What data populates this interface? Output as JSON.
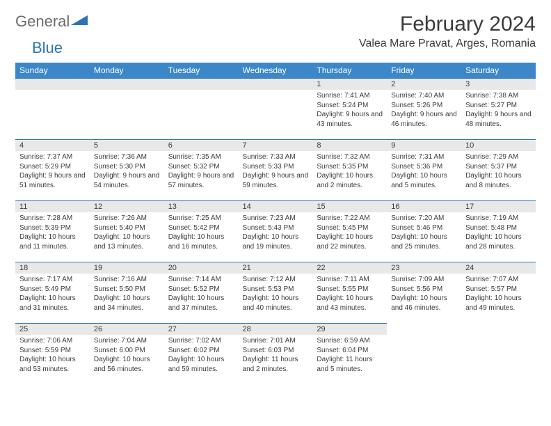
{
  "brand": {
    "name_gray": "General",
    "name_blue": "Blue"
  },
  "title": "February 2024",
  "location": "Valea Mare Pravat, Arges, Romania",
  "colors": {
    "header_bg": "#3b87c8",
    "header_text": "#ffffff",
    "daynum_bg": "#e8e8e8",
    "border": "#2b74b8",
    "text": "#3a3a3a",
    "logo_gray": "#6b6b6b",
    "logo_blue": "#2b74b8"
  },
  "weekdays": [
    "Sunday",
    "Monday",
    "Tuesday",
    "Wednesday",
    "Thursday",
    "Friday",
    "Saturday"
  ],
  "weeks": [
    [
      null,
      null,
      null,
      null,
      {
        "n": "1",
        "sr": "Sunrise: 7:41 AM",
        "ss": "Sunset: 5:24 PM",
        "dl": "Daylight: 9 hours and 43 minutes."
      },
      {
        "n": "2",
        "sr": "Sunrise: 7:40 AM",
        "ss": "Sunset: 5:26 PM",
        "dl": "Daylight: 9 hours and 46 minutes."
      },
      {
        "n": "3",
        "sr": "Sunrise: 7:38 AM",
        "ss": "Sunset: 5:27 PM",
        "dl": "Daylight: 9 hours and 48 minutes."
      }
    ],
    [
      {
        "n": "4",
        "sr": "Sunrise: 7:37 AM",
        "ss": "Sunset: 5:29 PM",
        "dl": "Daylight: 9 hours and 51 minutes."
      },
      {
        "n": "5",
        "sr": "Sunrise: 7:36 AM",
        "ss": "Sunset: 5:30 PM",
        "dl": "Daylight: 9 hours and 54 minutes."
      },
      {
        "n": "6",
        "sr": "Sunrise: 7:35 AM",
        "ss": "Sunset: 5:32 PM",
        "dl": "Daylight: 9 hours and 57 minutes."
      },
      {
        "n": "7",
        "sr": "Sunrise: 7:33 AM",
        "ss": "Sunset: 5:33 PM",
        "dl": "Daylight: 9 hours and 59 minutes."
      },
      {
        "n": "8",
        "sr": "Sunrise: 7:32 AM",
        "ss": "Sunset: 5:35 PM",
        "dl": "Daylight: 10 hours and 2 minutes."
      },
      {
        "n": "9",
        "sr": "Sunrise: 7:31 AM",
        "ss": "Sunset: 5:36 PM",
        "dl": "Daylight: 10 hours and 5 minutes."
      },
      {
        "n": "10",
        "sr": "Sunrise: 7:29 AM",
        "ss": "Sunset: 5:37 PM",
        "dl": "Daylight: 10 hours and 8 minutes."
      }
    ],
    [
      {
        "n": "11",
        "sr": "Sunrise: 7:28 AM",
        "ss": "Sunset: 5:39 PM",
        "dl": "Daylight: 10 hours and 11 minutes."
      },
      {
        "n": "12",
        "sr": "Sunrise: 7:26 AM",
        "ss": "Sunset: 5:40 PM",
        "dl": "Daylight: 10 hours and 13 minutes."
      },
      {
        "n": "13",
        "sr": "Sunrise: 7:25 AM",
        "ss": "Sunset: 5:42 PM",
        "dl": "Daylight: 10 hours and 16 minutes."
      },
      {
        "n": "14",
        "sr": "Sunrise: 7:23 AM",
        "ss": "Sunset: 5:43 PM",
        "dl": "Daylight: 10 hours and 19 minutes."
      },
      {
        "n": "15",
        "sr": "Sunrise: 7:22 AM",
        "ss": "Sunset: 5:45 PM",
        "dl": "Daylight: 10 hours and 22 minutes."
      },
      {
        "n": "16",
        "sr": "Sunrise: 7:20 AM",
        "ss": "Sunset: 5:46 PM",
        "dl": "Daylight: 10 hours and 25 minutes."
      },
      {
        "n": "17",
        "sr": "Sunrise: 7:19 AM",
        "ss": "Sunset: 5:48 PM",
        "dl": "Daylight: 10 hours and 28 minutes."
      }
    ],
    [
      {
        "n": "18",
        "sr": "Sunrise: 7:17 AM",
        "ss": "Sunset: 5:49 PM",
        "dl": "Daylight: 10 hours and 31 minutes."
      },
      {
        "n": "19",
        "sr": "Sunrise: 7:16 AM",
        "ss": "Sunset: 5:50 PM",
        "dl": "Daylight: 10 hours and 34 minutes."
      },
      {
        "n": "20",
        "sr": "Sunrise: 7:14 AM",
        "ss": "Sunset: 5:52 PM",
        "dl": "Daylight: 10 hours and 37 minutes."
      },
      {
        "n": "21",
        "sr": "Sunrise: 7:12 AM",
        "ss": "Sunset: 5:53 PM",
        "dl": "Daylight: 10 hours and 40 minutes."
      },
      {
        "n": "22",
        "sr": "Sunrise: 7:11 AM",
        "ss": "Sunset: 5:55 PM",
        "dl": "Daylight: 10 hours and 43 minutes."
      },
      {
        "n": "23",
        "sr": "Sunrise: 7:09 AM",
        "ss": "Sunset: 5:56 PM",
        "dl": "Daylight: 10 hours and 46 minutes."
      },
      {
        "n": "24",
        "sr": "Sunrise: 7:07 AM",
        "ss": "Sunset: 5:57 PM",
        "dl": "Daylight: 10 hours and 49 minutes."
      }
    ],
    [
      {
        "n": "25",
        "sr": "Sunrise: 7:06 AM",
        "ss": "Sunset: 5:59 PM",
        "dl": "Daylight: 10 hours and 53 minutes."
      },
      {
        "n": "26",
        "sr": "Sunrise: 7:04 AM",
        "ss": "Sunset: 6:00 PM",
        "dl": "Daylight: 10 hours and 56 minutes."
      },
      {
        "n": "27",
        "sr": "Sunrise: 7:02 AM",
        "ss": "Sunset: 6:02 PM",
        "dl": "Daylight: 10 hours and 59 minutes."
      },
      {
        "n": "28",
        "sr": "Sunrise: 7:01 AM",
        "ss": "Sunset: 6:03 PM",
        "dl": "Daylight: 11 hours and 2 minutes."
      },
      {
        "n": "29",
        "sr": "Sunrise: 6:59 AM",
        "ss": "Sunset: 6:04 PM",
        "dl": "Daylight: 11 hours and 5 minutes."
      },
      null,
      null
    ]
  ]
}
